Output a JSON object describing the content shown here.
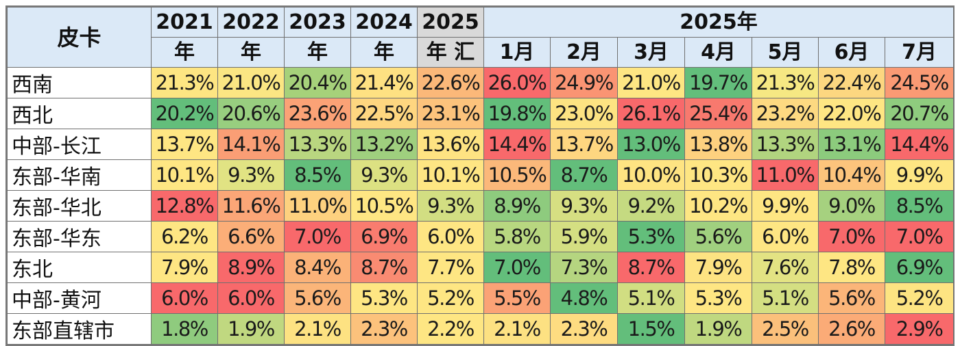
{
  "header": {
    "corner": "皮卡",
    "years": [
      {
        "top": "2021",
        "bottom": "年"
      },
      {
        "top": "2022",
        "bottom": "年"
      },
      {
        "top": "2023",
        "bottom": "年"
      },
      {
        "top": "2024",
        "bottom": "年"
      },
      {
        "top": "2025",
        "bottom": "年 汇"
      }
    ],
    "month_group": "2025年",
    "months": [
      "1月",
      "2月",
      "3月",
      "4月",
      "5月",
      "6月",
      "7月"
    ]
  },
  "rows": [
    {
      "region": "西南",
      "values": [
        "21.3%",
        "21.0%",
        "20.4%",
        "21.4%",
        "22.6%",
        "26.0%",
        "24.9%",
        "21.0%",
        "19.7%",
        "21.3%",
        "22.4%",
        "24.5%"
      ],
      "colors": [
        "#fde582",
        "#fbe683",
        "#a6d17a",
        "#fee182",
        "#fbb879",
        "#f8696b",
        "#fa9473",
        "#fee683",
        "#63be7b",
        "#f6e883",
        "#fcd780",
        "#fa9a74"
      ]
    },
    {
      "region": "西北",
      "values": [
        "20.2%",
        "20.6%",
        "23.6%",
        "22.5%",
        "23.1%",
        "19.8%",
        "23.0%",
        "26.1%",
        "25.4%",
        "23.2%",
        "22.0%",
        "20.7%"
      ],
      "colors": [
        "#63be7b",
        "#98ce7f",
        "#fba276",
        "#fed680",
        "#fcc37c",
        "#63be7b",
        "#fde382",
        "#f8696b",
        "#f8796e",
        "#fdd981",
        "#fee683",
        "#8fcc7e"
      ]
    },
    {
      "region": "中部-长江",
      "values": [
        "13.7%",
        "14.1%",
        "13.3%",
        "13.2%",
        "13.6%",
        "14.4%",
        "13.7%",
        "13.0%",
        "13.8%",
        "13.3%",
        "13.1%",
        "14.4%"
      ],
      "colors": [
        "#fee683",
        "#fa9e75",
        "#b9d680",
        "#9fcf7e",
        "#fee382",
        "#f8696b",
        "#fed680",
        "#63be7b",
        "#fdd17f",
        "#b1d47f",
        "#8ccb7d",
        "#f8696b"
      ]
    },
    {
      "region": "东部-华南",
      "values": [
        "10.1%",
        "9.3%",
        "8.5%",
        "9.3%",
        "10.1%",
        "10.5%",
        "8.7%",
        "10.0%",
        "10.3%",
        "11.0%",
        "10.4%",
        "9.9%"
      ],
      "colors": [
        "#fee683",
        "#e1e383",
        "#63be7b",
        "#dce182",
        "#fee683",
        "#fbb87a",
        "#63be7b",
        "#fee482",
        "#fee683",
        "#f8696b",
        "#fcc47c",
        "#fee683"
      ]
    },
    {
      "region": "东部-华北",
      "values": [
        "12.8%",
        "11.6%",
        "11.0%",
        "10.5%",
        "9.3%",
        "8.9%",
        "9.3%",
        "9.2%",
        "10.2%",
        "9.9%",
        "9.0%",
        "8.5%"
      ],
      "colors": [
        "#f8696b",
        "#fba677",
        "#fdd17f",
        "#fee683",
        "#d2de82",
        "#8ecb7e",
        "#d6df82",
        "#c5da81",
        "#fee683",
        "#fee683",
        "#a6d17f",
        "#63be7b"
      ]
    },
    {
      "region": "东部-华东",
      "values": [
        "6.2%",
        "6.6%",
        "7.0%",
        "6.9%",
        "6.0%",
        "5.8%",
        "5.9%",
        "5.3%",
        "5.6%",
        "6.0%",
        "7.0%",
        "7.0%"
      ],
      "colors": [
        "#fee683",
        "#fbae78",
        "#f8696b",
        "#f97c6f",
        "#fee683",
        "#b8d780",
        "#d4df82",
        "#63be7b",
        "#a0d07f",
        "#fee683",
        "#f8696b",
        "#f8696b"
      ]
    },
    {
      "region": "东北",
      "values": [
        "7.9%",
        "8.9%",
        "8.4%",
        "8.7%",
        "7.7%",
        "7.0%",
        "7.3%",
        "8.7%",
        "7.9%",
        "7.6%",
        "7.8%",
        "6.9%"
      ],
      "colors": [
        "#fee683",
        "#f8696b",
        "#fbb278",
        "#f98b72",
        "#fee683",
        "#63be7b",
        "#b5d580",
        "#f8696b",
        "#fde382",
        "#e3e383",
        "#fee683",
        "#63be7b"
      ]
    },
    {
      "region": "中部-黄河",
      "values": [
        "6.0%",
        "6.0%",
        "5.6%",
        "5.3%",
        "5.2%",
        "5.5%",
        "4.8%",
        "5.1%",
        "5.3%",
        "5.1%",
        "5.6%",
        "5.2%"
      ],
      "colors": [
        "#f8696b",
        "#f8696b",
        "#fbb579",
        "#fee683",
        "#fee683",
        "#fba276",
        "#63be7b",
        "#d1de82",
        "#fee683",
        "#d4df82",
        "#fbb579",
        "#fde482"
      ]
    },
    {
      "region": "东部直辖市",
      "values": [
        "1.8%",
        "1.9%",
        "2.1%",
        "2.3%",
        "2.2%",
        "2.1%",
        "2.3%",
        "1.5%",
        "1.9%",
        "2.5%",
        "2.6%",
        "2.9%"
      ],
      "colors": [
        "#8fcb7e",
        "#c0d880",
        "#fde282",
        "#fcc27c",
        "#fee683",
        "#fde182",
        "#fedc81",
        "#63be7b",
        "#bfd880",
        "#fbc07b",
        "#fbab77",
        "#f8696b"
      ]
    }
  ]
}
